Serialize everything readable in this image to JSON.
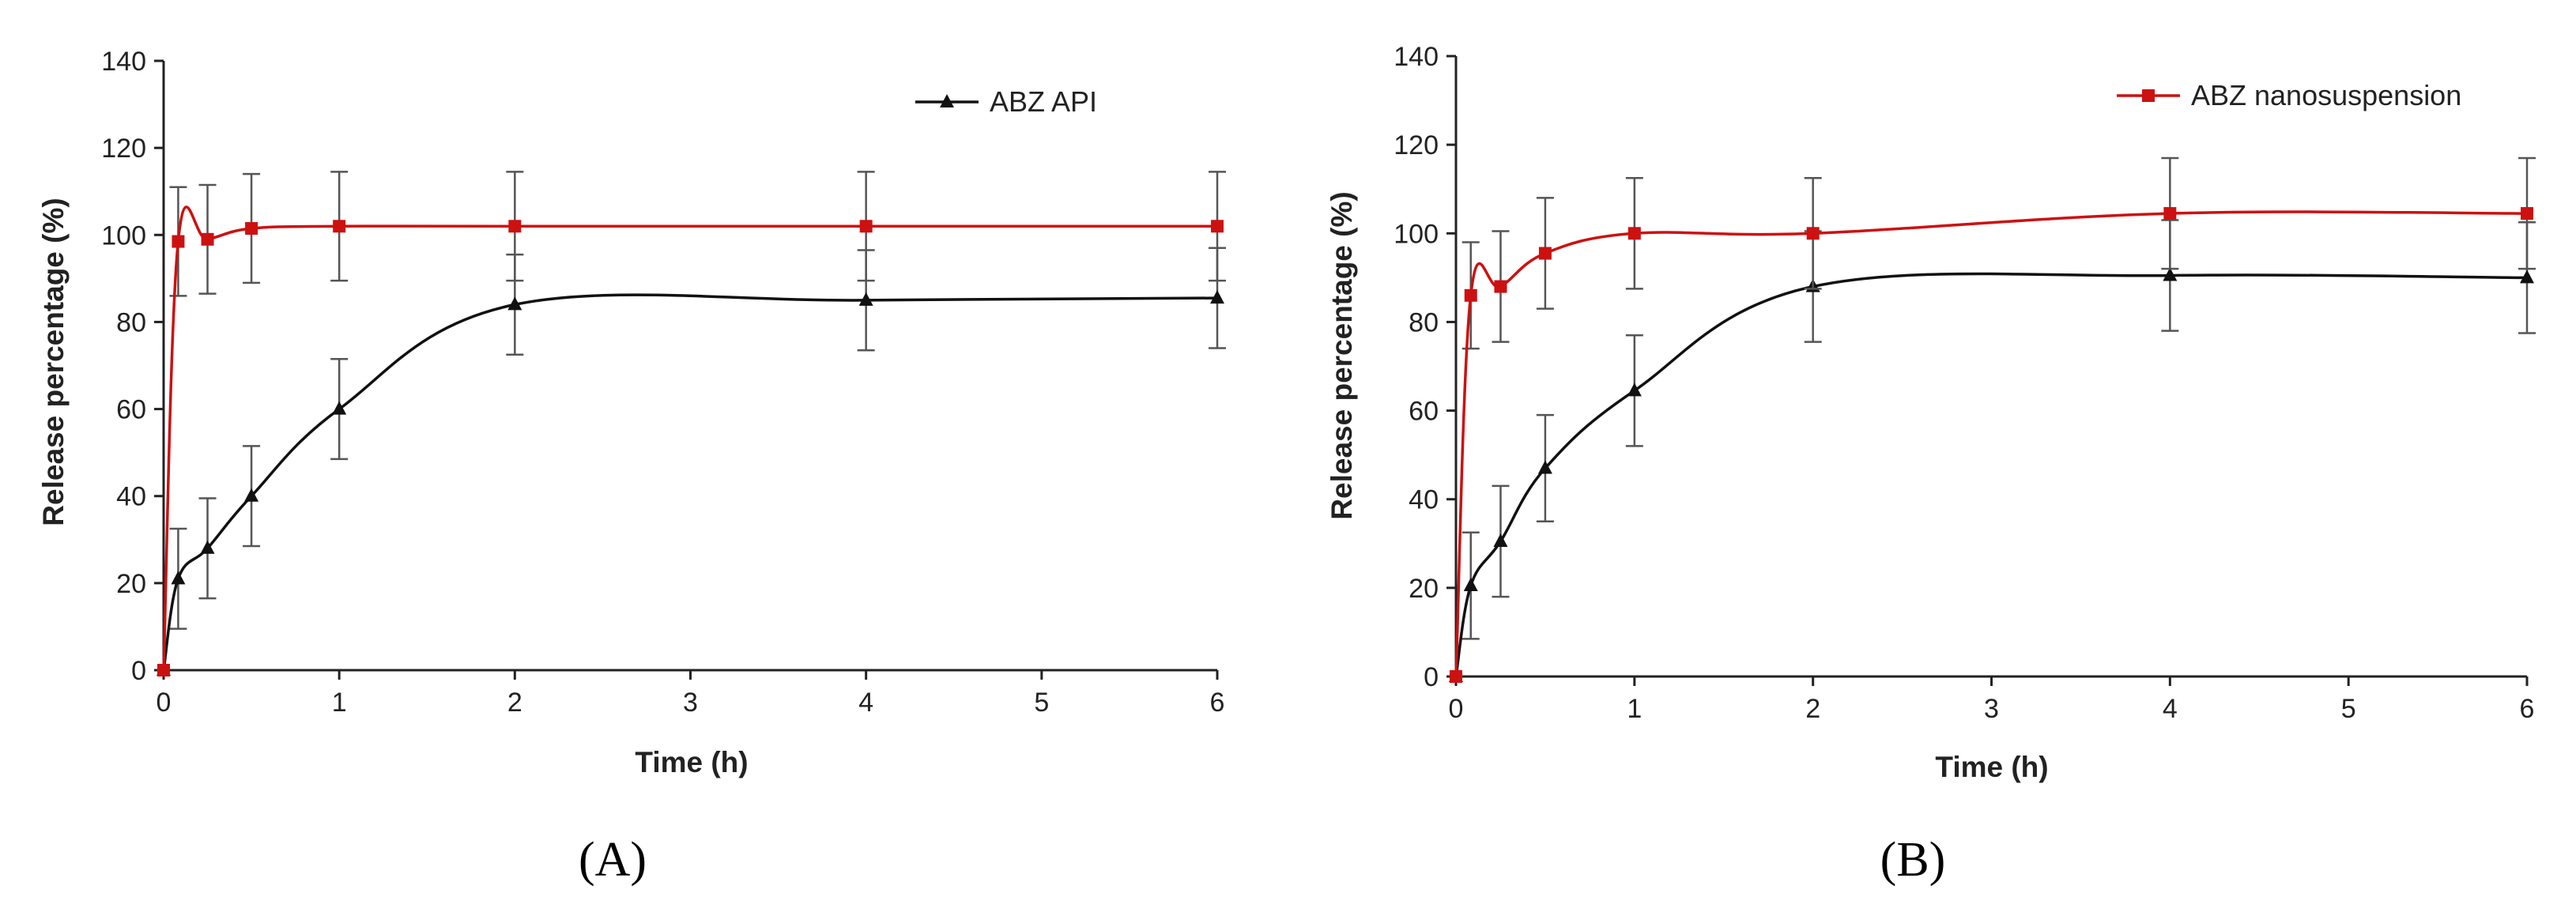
{
  "chart_data": [
    {
      "type": "line",
      "panel": "A",
      "caption": "(A)",
      "xlabel": "Time (h)",
      "ylabel": "Release percentage (%)",
      "xlim": [
        0,
        6
      ],
      "ylim": [
        0,
        140
      ],
      "xticks": [
        0,
        1,
        2,
        3,
        4,
        5,
        6
      ],
      "yticks": [
        0,
        20,
        40,
        60,
        80,
        100,
        120,
        140
      ],
      "grid": false,
      "legend_position": "top-right",
      "legend": [
        "ABZ API"
      ],
      "series": [
        {
          "name": "ABZ API",
          "color": "#111111",
          "marker": "triangle",
          "x": [
            0,
            0.083,
            0.25,
            0.5,
            1,
            2,
            4,
            6
          ],
          "y": [
            0,
            21,
            28,
            40,
            60,
            84,
            85,
            85.5
          ],
          "err": [
            0,
            11.5,
            11.5,
            11.5,
            11.5,
            11.5,
            11.5,
            11.5
          ]
        },
        {
          "name": "ABZ nanosuspension",
          "color": "#cc1111",
          "marker": "square",
          "x": [
            0,
            0.083,
            0.25,
            0.5,
            1,
            2,
            4,
            6
          ],
          "y": [
            0,
            98.5,
            99,
            101.5,
            102,
            102,
            102,
            102
          ],
          "err": [
            0,
            12.5,
            12.5,
            12.5,
            12.5,
            12.5,
            12.5,
            12.5
          ]
        }
      ]
    },
    {
      "type": "line",
      "panel": "B",
      "caption": "(B)",
      "xlabel": "Time (h)",
      "ylabel": "Release percentage (%)",
      "xlim": [
        0,
        6
      ],
      "ylim": [
        0,
        140
      ],
      "xticks": [
        0,
        1,
        2,
        3,
        4,
        5,
        6
      ],
      "yticks": [
        0,
        20,
        40,
        60,
        80,
        100,
        120,
        140
      ],
      "grid": false,
      "legend_position": "top-right",
      "legend": [
        "ABZ nanosuspension"
      ],
      "series": [
        {
          "name": "ABZ API",
          "color": "#111111",
          "marker": "triangle",
          "x": [
            0,
            0.083,
            0.25,
            0.5,
            1,
            2,
            4,
            6
          ],
          "y": [
            0,
            20.5,
            30.5,
            47,
            64.5,
            88,
            90.5,
            90
          ],
          "err": [
            0,
            12,
            12.5,
            12,
            12.5,
            12.5,
            12.5,
            12.5
          ]
        },
        {
          "name": "ABZ nanosuspension",
          "color": "#cc1111",
          "marker": "square",
          "x": [
            0,
            0.083,
            0.25,
            0.5,
            1,
            2,
            4,
            6
          ],
          "y": [
            0,
            86,
            88,
            95.5,
            100,
            100,
            104.5,
            104.5
          ],
          "err": [
            0,
            12,
            12.5,
            12.5,
            12.5,
            12.5,
            12.5,
            12.5
          ]
        }
      ]
    }
  ]
}
